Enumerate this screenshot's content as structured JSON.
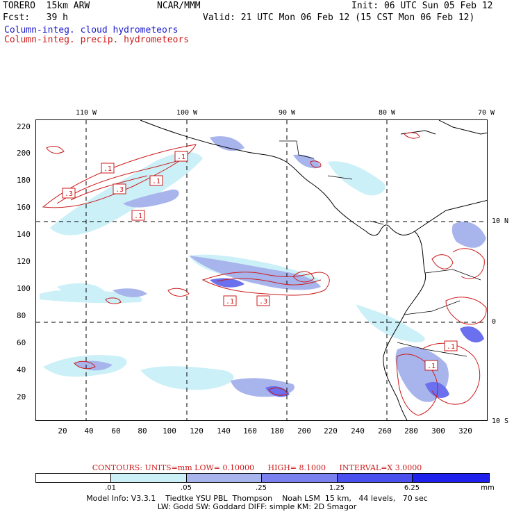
{
  "header": {
    "model": "TORERO  15km ARW",
    "center": "NCAR/MMM",
    "init": "Init: 06 UTC Sun 05 Feb 12",
    "fcst": "Fcst:   39 h",
    "valid": "Valid: 21 UTC Mon 06 Feb 12 (15 CST Mon 06 Feb 12)"
  },
  "legend": {
    "cloud": "Column-integ. cloud hydrometeors",
    "precip": "Column-integ. precip. hydrometeors"
  },
  "axes": {
    "y_ticks": [
      "220",
      "200",
      "180",
      "160",
      "140",
      "120",
      "100",
      "80",
      "60",
      "40",
      "20"
    ],
    "x_ticks": [
      "20",
      "40",
      "60",
      "80",
      "100",
      "120",
      "140",
      "160",
      "180",
      "200",
      "220",
      "240",
      "260",
      "280",
      "300",
      "320"
    ],
    "lon_labels": [
      "110 W",
      "100 W",
      "90 W",
      "80 W",
      "70 W"
    ],
    "lat_labels": [
      "10 N",
      "0",
      "10 S"
    ]
  },
  "contour_info": {
    "contours": "CONTOURS:  UNITS=mm  LOW= 0.10000",
    "high": "HIGH=  8.1000",
    "interval": "INTERVAL=X  3.0000"
  },
  "colorbar": {
    "labels": [
      ".01",
      ".05",
      ".25",
      "1.25",
      "6.25"
    ],
    "units": "mm",
    "colors": [
      "#ffffff",
      "#ccf0f7",
      "#a8b4ec",
      "#7a80ee",
      "#4a50ee",
      "#2020ee"
    ]
  },
  "model_info": {
    "line1": "Model Info: V3.3.1    Tiedtke YSU PBL  Thompson    Noah LSM  15 km,   44 levels,   70 sec",
    "line2": "LW: Godd SW: Goddard DIFF: simple KM: 2D Smagor"
  },
  "contour_labels": [
    ".1",
    ".1",
    ".3",
    ".3",
    ".1",
    ".1",
    ".1",
    ".3",
    ".1",
    ".1"
  ]
}
